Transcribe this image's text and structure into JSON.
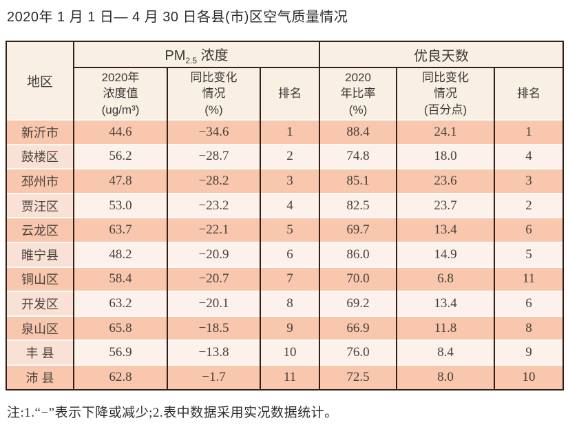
{
  "page": {
    "title": "2020年 1 月 1 日— 4 月 30 日各县(市)区空气质量情况",
    "note": "注:1.“−”表示下降或减少;2.表中数据采用实况数据统计。"
  },
  "table": {
    "region_header": "地区",
    "pm25_group": {
      "prefix": "PM",
      "sub": "2.5",
      "suffix": " 浓度"
    },
    "good_days_group": "优良天数",
    "subheaders": [
      [
        "2020年",
        "浓度值",
        "(ug/m³)"
      ],
      [
        "同比变化",
        "情况",
        "(%)"
      ],
      [
        "排名"
      ],
      [
        "2020",
        "年比率",
        "(%)"
      ],
      [
        "同比变化",
        "情况",
        "(百分点)"
      ],
      [
        "排名"
      ]
    ],
    "rows": [
      [
        "新沂市",
        "44.6",
        "−34.6",
        "1",
        "88.4",
        "24.1",
        "1"
      ],
      [
        "鼓楼区",
        "56.2",
        "−28.7",
        "2",
        "74.8",
        "18.0",
        "4"
      ],
      [
        "邳州市",
        "47.8",
        "−28.2",
        "3",
        "85.1",
        "23.6",
        "3"
      ],
      [
        "贾汪区",
        "53.0",
        "−23.2",
        "4",
        "82.5",
        "23.7",
        "2"
      ],
      [
        "云龙区",
        "63.7",
        "−22.1",
        "5",
        "69.7",
        "13.4",
        "6"
      ],
      [
        "睢宁县",
        "48.2",
        "−20.9",
        "6",
        "86.0",
        "14.9",
        "5"
      ],
      [
        "铜山区",
        "58.4",
        "−20.7",
        "7",
        "70.0",
        "6.8",
        "11"
      ],
      [
        "开发区",
        "63.2",
        "−20.1",
        "8",
        "69.2",
        "13.4",
        "6"
      ],
      [
        "泉山区",
        "65.8",
        "−18.5",
        "9",
        "66.9",
        "11.8",
        "8"
      ],
      [
        "丰 县",
        "56.9",
        "−13.8",
        "10",
        "76.0",
        "8.4",
        "9"
      ],
      [
        "沛 县",
        "62.8",
        "−1.7",
        "11",
        "72.5",
        "8.0",
        "10"
      ]
    ]
  },
  "chart_data": {
    "type": "table",
    "title": "2020年1月1日—4月30日各县(市)区空气质量情况",
    "columns": [
      "地区",
      "PM2.5浓度 2020年浓度值(ug/m3)",
      "PM2.5浓度 同比变化情况(%)",
      "PM2.5浓度 排名",
      "优良天数 2020年比率(%)",
      "优良天数 同比变化情况(百分点)",
      "优良天数 排名"
    ],
    "rows": [
      [
        "新沂市",
        44.6,
        -34.6,
        1,
        88.4,
        24.1,
        1
      ],
      [
        "鼓楼区",
        56.2,
        -28.7,
        2,
        74.8,
        18.0,
        4
      ],
      [
        "邳州市",
        47.8,
        -28.2,
        3,
        85.1,
        23.6,
        3
      ],
      [
        "贾汪区",
        53.0,
        -23.2,
        4,
        82.5,
        23.7,
        2
      ],
      [
        "云龙区",
        63.7,
        -22.1,
        5,
        69.7,
        13.4,
        6
      ],
      [
        "睢宁县",
        48.2,
        -20.9,
        6,
        86.0,
        14.9,
        5
      ],
      [
        "铜山区",
        58.4,
        -20.7,
        7,
        70.0,
        6.8,
        11
      ],
      [
        "开发区",
        63.2,
        -20.1,
        8,
        69.2,
        13.4,
        6
      ],
      [
        "泉山区",
        65.8,
        -18.5,
        9,
        66.9,
        11.8,
        8
      ],
      [
        "丰县",
        56.9,
        -13.8,
        10,
        76.0,
        8.4,
        9
      ],
      [
        "沛县",
        62.8,
        -1.7,
        11,
        72.5,
        8.0,
        10
      ]
    ],
    "note": "注:1.“−”表示下降或减少;2.表中数据采用实况数据统计。"
  }
}
